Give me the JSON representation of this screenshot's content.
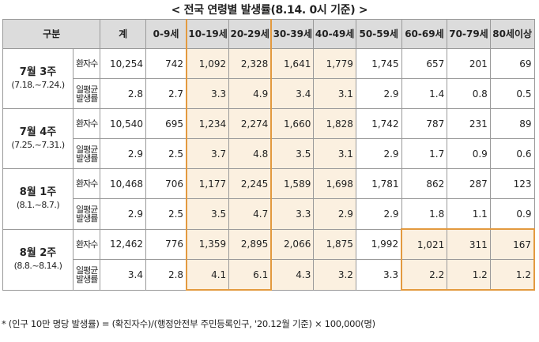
{
  "title": "< 전국 연령별 발생률(8.14. 0시 기준) >",
  "headers": [
    "구분",
    "계",
    "0-9세",
    "10-19세",
    "20-29세",
    "30-39세",
    "40-49세",
    "50-59세",
    "60-69세",
    "70-79세",
    "80세이상"
  ],
  "sub_labels": {
    "patients": "환자수",
    "avg": "일평균발생률"
  },
  "rows": [
    {
      "week": "7월 3주",
      "range": "(7.18.~7.24.)",
      "patients": [
        "10,254",
        "742",
        "1,092",
        "2,328",
        "1,641",
        "1,779",
        "1,745",
        "657",
        "201",
        "69"
      ],
      "avg": [
        "2.8",
        "2.7",
        "3.3",
        "4.9",
        "3.4",
        "3.1",
        "2.9",
        "1.4",
        "0.8",
        "0.5"
      ]
    },
    {
      "week": "7월 4주",
      "range": "(7.25.~7.31.)",
      "patients": [
        "10,540",
        "695",
        "1,234",
        "2,274",
        "1,660",
        "1,828",
        "1,742",
        "787",
        "231",
        "89"
      ],
      "avg": [
        "2.9",
        "2.5",
        "3.7",
        "4.8",
        "3.5",
        "3.1",
        "2.9",
        "1.7",
        "0.9",
        "0.6"
      ]
    },
    {
      "week": "8월 1주",
      "range": "(8.1.~8.7.)",
      "patients": [
        "10,468",
        "706",
        "1,177",
        "2,245",
        "1,589",
        "1,698",
        "1,781",
        "862",
        "287",
        "123"
      ],
      "avg": [
        "2.9",
        "2.5",
        "3.5",
        "4.7",
        "3.3",
        "2.9",
        "2.9",
        "1.8",
        "1.1",
        "0.9"
      ]
    },
    {
      "week": "8월 2주",
      "range": "(8.8.~8.14.)",
      "patients": [
        "12,462",
        "776",
        "1,359",
        "2,895",
        "2,066",
        "1,875",
        "1,992",
        "1,021",
        "311",
        "167"
      ],
      "avg": [
        "3.4",
        "2.8",
        "4.1",
        "6.1",
        "4.3",
        "3.2",
        "3.3",
        "2.2",
        "1.2",
        "1.2"
      ]
    }
  ],
  "footnote": "* (인구 10만 명당 발생률) = (확진자수)/(행정안전부 주민등록인구, '20.12월 기준) × 100,000(명)",
  "colors": {
    "highlight": "#fbf0e0",
    "outline": "#e39a3f",
    "header_bg": "#dcdcdc"
  }
}
